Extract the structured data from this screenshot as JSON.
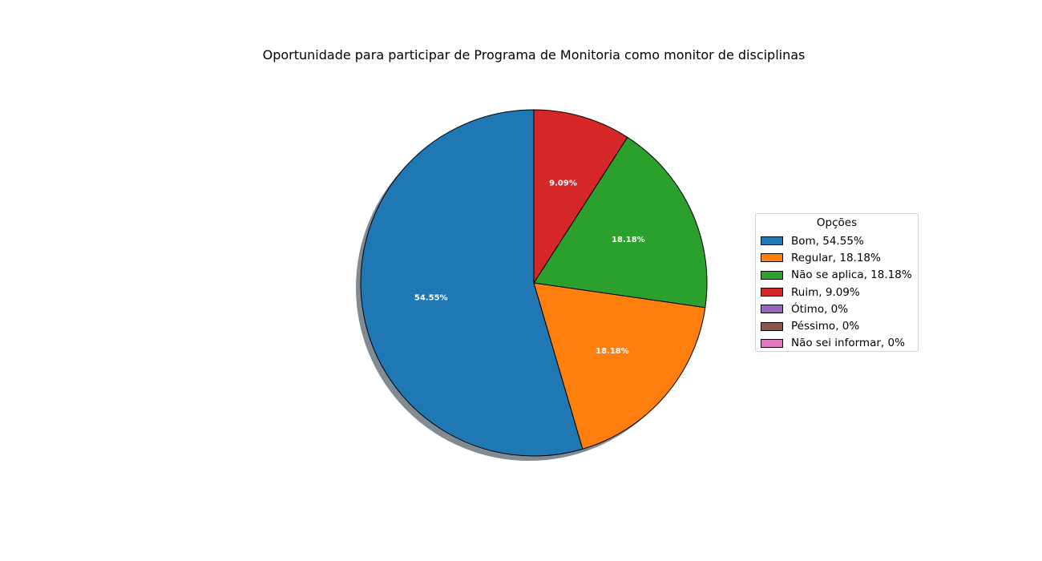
{
  "chart_data": {
    "type": "pie",
    "title": "Oportunidade para participar de Programa de Monitoria como monitor de disciplinas",
    "legend_title": "Opções",
    "legend_position": "right",
    "start_angle_deg": 90,
    "direction": "counterclockwise",
    "shadow": true,
    "slices": [
      {
        "label": "Bom",
        "value": 54.55,
        "display": "54.55%",
        "legend": "Bom, 54.55%",
        "color": "#1f77b4"
      },
      {
        "label": "Regular",
        "value": 18.18,
        "display": "18.18%",
        "legend": "Regular, 18.18%",
        "color": "#ff7f0e"
      },
      {
        "label": "Não se aplica",
        "value": 18.18,
        "display": "18.18%",
        "legend": "Não se aplica, 18.18%",
        "color": "#2ca02c"
      },
      {
        "label": "Ruim",
        "value": 9.09,
        "display": "9.09%",
        "legend": "Ruim, 9.09%",
        "color": "#d62728"
      },
      {
        "label": "Ótimo",
        "value": 0,
        "display": "",
        "legend": "Ótimo, 0%",
        "color": "#9467bd"
      },
      {
        "label": "Péssimo",
        "value": 0,
        "display": "",
        "legend": "Péssimo, 0%",
        "color": "#8c564b"
      },
      {
        "label": "Não sei informar",
        "value": 0,
        "display": "",
        "legend": "Não sei informar, 0%",
        "color": "#e377c2"
      }
    ]
  }
}
